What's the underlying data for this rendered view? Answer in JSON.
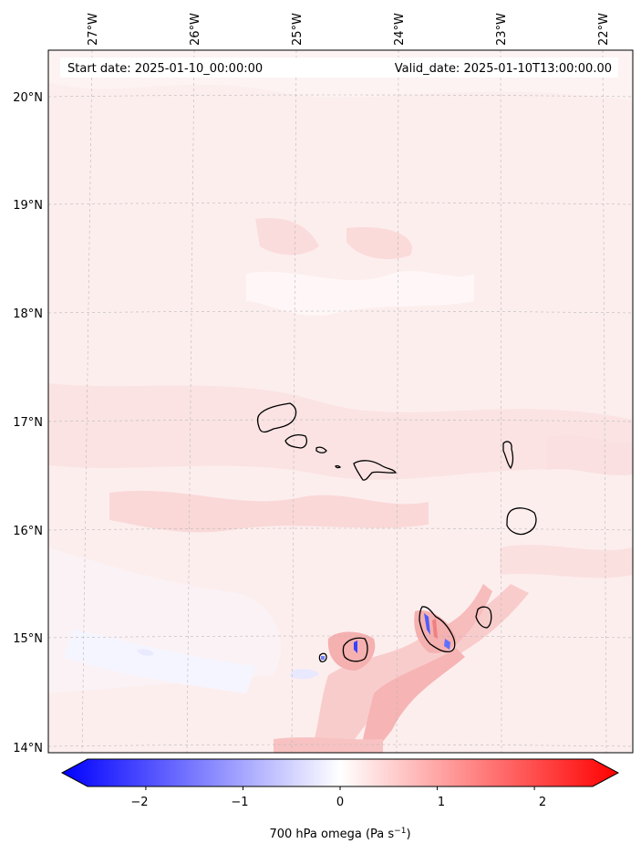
{
  "header": {
    "start_date": "Start date: 2025-01-10_00:00:00",
    "valid_date": "Valid_date: 2025-01-10T13:00:00.00"
  },
  "longitude_labels": [
    "27°W",
    "26°W",
    "25°W",
    "24°W",
    "23°W",
    "22°W"
  ],
  "latitude_labels": [
    "20°N",
    "19°N",
    "18°N",
    "17°N",
    "16°N",
    "15°N",
    "14°N"
  ],
  "colorbar": {
    "label_prefix": "700 hPa omega (Pa s",
    "label_exp": "−1",
    "label_suffix": ")",
    "ticks": [
      "−2",
      "−1",
      "0",
      "1",
      "2"
    ],
    "range": [
      -2.6,
      2.6
    ],
    "colormap": "bwr",
    "colors": {
      "min": "#0000ff",
      "mid": "#ffffff",
      "max": "#ff0000"
    },
    "extend": "both"
  },
  "map": {
    "extent_lon": [
      -27.4,
      -21.7
    ],
    "extent_lat": [
      13.95,
      20.45
    ],
    "gridlines": true,
    "gridline_style": "dashed gray",
    "coastline_color": "#000000",
    "islands": [
      "Santo Antão",
      "São Vicente",
      "Santa Luzia",
      "São Nicolau",
      "Sal",
      "Boa Vista",
      "Maio",
      "Santiago",
      "Fogo",
      "Brava"
    ]
  }
}
